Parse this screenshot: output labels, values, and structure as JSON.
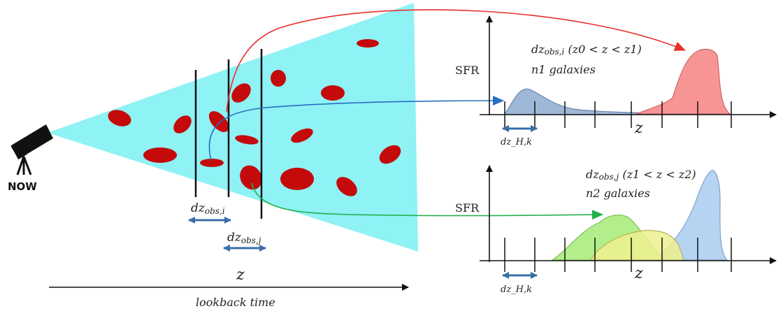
{
  "left": {
    "now_label": "NOW",
    "dz_obs_i": {
      "base": "dz",
      "sub": "obs,i"
    },
    "dz_obs_j": {
      "base": "dz",
      "sub": "obs,j"
    },
    "z_label": "z",
    "lookback_label": "lookback time"
  },
  "top_panel": {
    "sfr_label": "SFR",
    "title_main": "dz",
    "title_sub": "obs,i",
    "title_range": " (z0 < z < z1)",
    "galaxies": "n1 galaxies",
    "z_label": "z",
    "dz_h_label": "dz_H,k"
  },
  "bottom_panel": {
    "sfr_label": "SFR",
    "title_main": "dz",
    "title_sub": "obs,j",
    "title_range": " (z1 < z < z2)",
    "galaxies": "n2 galaxies",
    "z_label": "z",
    "dz_h_label": "dz_H,k"
  },
  "colors": {
    "cone": "#8ff2f5",
    "galaxy": "#c40a0a",
    "red_arrow": "#e8302a",
    "blue_arrow": "#2a6fc0",
    "green_arrow": "#22b14c",
    "blue_fill": "#9fb8d8",
    "red_fill": "#f79595",
    "green_fill": "#b2ef8a",
    "yellow_fill": "#eef08f",
    "lightblue_fill": "#b6d3f2"
  }
}
